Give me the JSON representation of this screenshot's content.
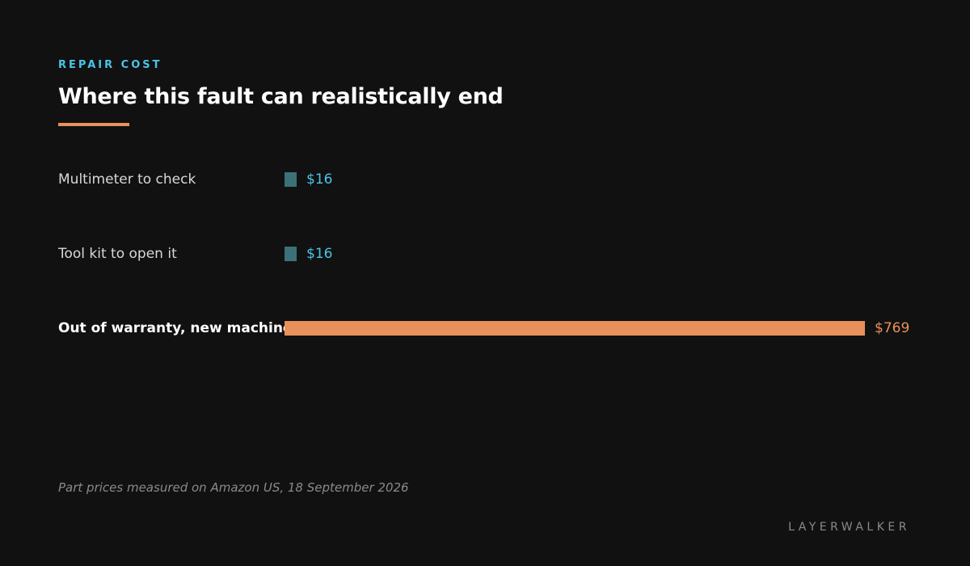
{
  "header": {
    "eyebrow": "REPAIR COST",
    "title": "Where this fault can realistically end",
    "accent_color": "#e8915a"
  },
  "chart_data": {
    "type": "bar",
    "orientation": "horizontal",
    "categories": [
      "Multimeter to check",
      "Tool kit to open it",
      "Out of warranty, new machine"
    ],
    "values": [
      16,
      16,
      769
    ],
    "value_labels": [
      "$16",
      "$16",
      "$769"
    ],
    "highlighted": [
      false,
      false,
      true
    ],
    "colors": {
      "bar": "#3d7178",
      "bar_highlight": "#e8915a",
      "label": "#4cc3e6",
      "label_highlight": "#e8915a",
      "category": "#d8d8d8",
      "category_highlight": "#ffffff"
    },
    "title": "",
    "xlabel": "",
    "ylabel": "",
    "xlim": [
      0,
      769
    ],
    "grid": false,
    "legend": "none"
  },
  "footer": {
    "note": "Part prices measured on Amazon US, 18 September 2026",
    "brand": "LAYERWALKER"
  }
}
